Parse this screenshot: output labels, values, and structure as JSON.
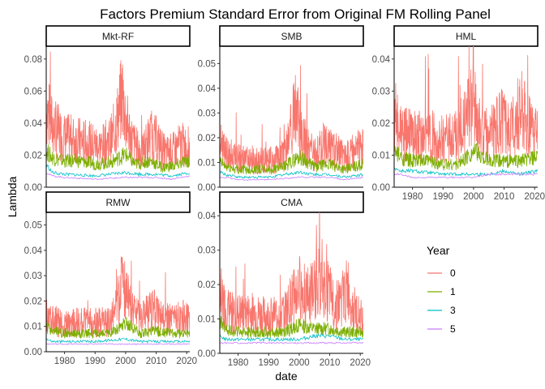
{
  "chart_data": {
    "type": "line",
    "title": "Factors Premium Standard Error from Original FM Rolling Panel",
    "xlabel": "date",
    "ylabel": "Lambda",
    "x_range": [
      1974,
      2021
    ],
    "x_ticks": [
      "1980",
      "1990",
      "2000",
      "2010",
      "2020"
    ],
    "grid": false,
    "legend": {
      "title": "Year",
      "placement": "right",
      "entries": [
        "0",
        "1",
        "3",
        "5"
      ]
    },
    "series_colors": {
      "0": "#F8766D",
      "1": "#7CAE00",
      "3": "#00BFC4",
      "5": "#C77CFF"
    },
    "panels": [
      {
        "name": "Mkt-RF",
        "ylim": [
          0,
          0.088
        ],
        "y_ticks": [
          "0.00",
          "0.02",
          "0.04",
          "0.06",
          "0.08"
        ],
        "series": [
          {
            "name": "0",
            "x": [
              1974,
              1976,
              1980,
              1984,
              1988,
              1992,
              1996,
              1999,
              2000,
              2002,
              2005,
              2008,
              2010,
              2013,
              2016,
              2018,
              2020,
              2021
            ],
            "values": [
              0.047,
              0.036,
              0.029,
              0.028,
              0.026,
              0.024,
              0.03,
              0.055,
              0.04,
              0.028,
              0.02,
              0.03,
              0.028,
              0.02,
              0.022,
              0.026,
              0.024,
              0.024
            ]
          },
          {
            "name": "1",
            "x": [
              1974,
              1976,
              1980,
              1985,
              1990,
              1995,
              2000,
              2003,
              2008,
              2012,
              2016,
              2020,
              2021
            ],
            "values": [
              0.022,
              0.018,
              0.016,
              0.016,
              0.014,
              0.015,
              0.02,
              0.014,
              0.016,
              0.012,
              0.013,
              0.016,
              0.016
            ]
          },
          {
            "name": "3",
            "x": [
              1974,
              1976,
              1980,
              1990,
              2000,
              2005,
              2010,
              2015,
              2021
            ],
            "values": [
              0.014,
              0.009,
              0.008,
              0.007,
              0.009,
              0.008,
              0.008,
              0.007,
              0.009
            ]
          },
          {
            "name": "5",
            "x": [
              1974,
              1976,
              1980,
              1990,
              2000,
              2005,
              2010,
              2015,
              2021
            ],
            "values": [
              0.009,
              0.007,
              0.006,
              0.005,
              0.006,
              0.006,
              0.006,
              0.005,
              0.007
            ]
          }
        ]
      },
      {
        "name": "SMB",
        "ylim": [
          0,
          0.057
        ],
        "y_ticks": [
          "0.00",
          "0.01",
          "0.02",
          "0.03",
          "0.04",
          "0.05"
        ],
        "series": [
          {
            "name": "0",
            "x": [
              1974,
              1976,
              1980,
              1985,
              1990,
              1995,
              1999,
              2000,
              2002,
              2005,
              2009,
              2010,
              2015,
              2020,
              2021
            ],
            "values": [
              0.018,
              0.013,
              0.011,
              0.01,
              0.01,
              0.012,
              0.03,
              0.022,
              0.017,
              0.012,
              0.018,
              0.015,
              0.012,
              0.015,
              0.015
            ]
          },
          {
            "name": "1",
            "x": [
              1974,
              1976,
              1980,
              1985,
              1990,
              1995,
              2000,
              2005,
              2010,
              2015,
              2021
            ],
            "values": [
              0.01,
              0.008,
              0.007,
              0.007,
              0.007,
              0.008,
              0.012,
              0.008,
              0.009,
              0.007,
              0.009
            ]
          },
          {
            "name": "3",
            "x": [
              1974,
              1976,
              1980,
              1990,
              2000,
              2005,
              2010,
              2015,
              2021
            ],
            "values": [
              0.006,
              0.005,
              0.004,
              0.004,
              0.006,
              0.005,
              0.005,
              0.004,
              0.005
            ]
          },
          {
            "name": "5",
            "x": [
              1974,
              1976,
              1980,
              1990,
              2000,
              2005,
              2010,
              2015,
              2021
            ],
            "values": [
              0.004,
              0.004,
              0.003,
              0.003,
              0.004,
              0.004,
              0.004,
              0.003,
              0.004
            ]
          }
        ]
      },
      {
        "name": "HML",
        "ylim": [
          0,
          0.044
        ],
        "y_ticks": [
          "0.00",
          "0.01",
          "0.02",
          "0.03",
          "0.04"
        ],
        "series": [
          {
            "name": "0",
            "x": [
              1974,
              1976,
              1980,
              1985,
              1990,
              1995,
              2000,
              2002,
              2005,
              2009,
              2012,
              2016,
              2018,
              2021
            ],
            "values": [
              0.022,
              0.016,
              0.015,
              0.015,
              0.014,
              0.015,
              0.025,
              0.018,
              0.015,
              0.02,
              0.016,
              0.025,
              0.018,
              0.015
            ]
          },
          {
            "name": "1",
            "x": [
              1974,
              1976,
              1980,
              1985,
              1990,
              1995,
              2000,
              2005,
              2010,
              2015,
              2021
            ],
            "values": [
              0.011,
              0.009,
              0.008,
              0.008,
              0.007,
              0.007,
              0.011,
              0.008,
              0.008,
              0.008,
              0.009
            ]
          },
          {
            "name": "3",
            "x": [
              1974,
              1976,
              1980,
              1990,
              2000,
              2005,
              2010,
              2015,
              2021
            ],
            "values": [
              0.006,
              0.005,
              0.005,
              0.004,
              0.004,
              0.004,
              0.005,
              0.004,
              0.005
            ]
          },
          {
            "name": "5",
            "x": [
              1974,
              1976,
              1980,
              1990,
              2000,
              2005,
              2010,
              2015,
              2021
            ],
            "values": [
              0.004,
              0.004,
              0.003,
              0.003,
              0.003,
              0.004,
              0.004,
              0.004,
              0.004
            ]
          }
        ]
      },
      {
        "name": "RMW",
        "ylim": [
          0,
          0.055
        ],
        "y_ticks": [
          "0.00",
          "0.01",
          "0.02",
          "0.03",
          "0.04",
          "0.05"
        ],
        "series": [
          {
            "name": "0",
            "x": [
              1974,
              1976,
              1980,
              1985,
              1990,
              1995,
              1999,
              2000,
              2002,
              2005,
              2009,
              2012,
              2016,
              2020,
              2021
            ],
            "values": [
              0.015,
              0.012,
              0.01,
              0.011,
              0.011,
              0.011,
              0.025,
              0.022,
              0.015,
              0.012,
              0.016,
              0.012,
              0.012,
              0.013,
              0.012
            ]
          },
          {
            "name": "1",
            "x": [
              1974,
              1976,
              1980,
              1985,
              1990,
              1995,
              2000,
              2005,
              2010,
              2015,
              2021
            ],
            "values": [
              0.009,
              0.008,
              0.007,
              0.007,
              0.007,
              0.007,
              0.011,
              0.007,
              0.008,
              0.007,
              0.007
            ]
          },
          {
            "name": "3",
            "x": [
              1974,
              1976,
              1980,
              1990,
              2000,
              2005,
              2010,
              2015,
              2021
            ],
            "values": [
              0.005,
              0.004,
              0.004,
              0.004,
              0.005,
              0.004,
              0.004,
              0.004,
              0.004
            ]
          },
          {
            "name": "5",
            "x": [
              1974,
              1976,
              1980,
              1990,
              2000,
              2005,
              2010,
              2015,
              2021
            ],
            "values": [
              0.003,
              0.003,
              0.003,
              0.003,
              0.003,
              0.003,
              0.003,
              0.003,
              0.003
            ]
          }
        ]
      },
      {
        "name": "CMA",
        "ylim": [
          0,
          0.041
        ],
        "y_ticks": [
          "0.00",
          "0.01",
          "0.02",
          "0.03",
          "0.04"
        ],
        "series": [
          {
            "name": "0",
            "x": [
              1974,
              1976,
              1980,
              1985,
              1990,
              1995,
              2000,
              2003,
              2006,
              2009,
              2012,
              2016,
              2018,
              2021
            ],
            "values": [
              0.016,
              0.012,
              0.011,
              0.011,
              0.01,
              0.011,
              0.018,
              0.015,
              0.02,
              0.018,
              0.013,
              0.018,
              0.012,
              0.009
            ]
          },
          {
            "name": "1",
            "x": [
              1974,
              1976,
              1980,
              1985,
              1990,
              1995,
              2000,
              2005,
              2010,
              2015,
              2021
            ],
            "values": [
              0.009,
              0.007,
              0.006,
              0.006,
              0.006,
              0.006,
              0.008,
              0.007,
              0.007,
              0.006,
              0.006
            ]
          },
          {
            "name": "3",
            "x": [
              1974,
              1976,
              1980,
              1990,
              2000,
              2005,
              2010,
              2015,
              2021
            ],
            "values": [
              0.005,
              0.004,
              0.004,
              0.004,
              0.004,
              0.005,
              0.005,
              0.004,
              0.004
            ]
          },
          {
            "name": "5",
            "x": [
              1974,
              1976,
              1980,
              1990,
              2000,
              2005,
              2010,
              2015,
              2021
            ],
            "values": [
              0.003,
              0.003,
              0.003,
              0.003,
              0.003,
              0.003,
              0.003,
              0.003,
              0.003
            ]
          }
        ]
      }
    ]
  }
}
